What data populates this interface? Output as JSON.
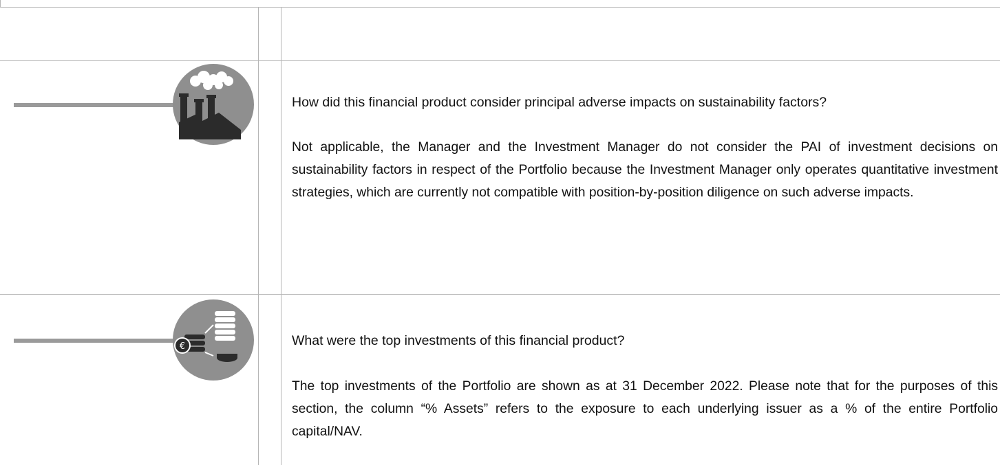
{
  "sections": [
    {
      "heading": "How did this financial product consider principal adverse impacts on sustainability factors?",
      "body": "Not applicable, the Manager and the Investment Manager do not consider the PAI of investment decisions on sustainability factors in respect of the Portfolio because the Investment Manager only operates quantitative investment strategies, which are currently not compatible with position-by-position diligence on such adverse impacts."
    },
    {
      "heading": "What were the top investments of this financial product?",
      "body": "The top investments of the Portfolio are shown as at 31 December 2022. Please note that for the purposes of this section, the column “% Assets” refers to the exposure to each underlying issuer as a % of the entire Portfolio capital/NAV."
    }
  ]
}
